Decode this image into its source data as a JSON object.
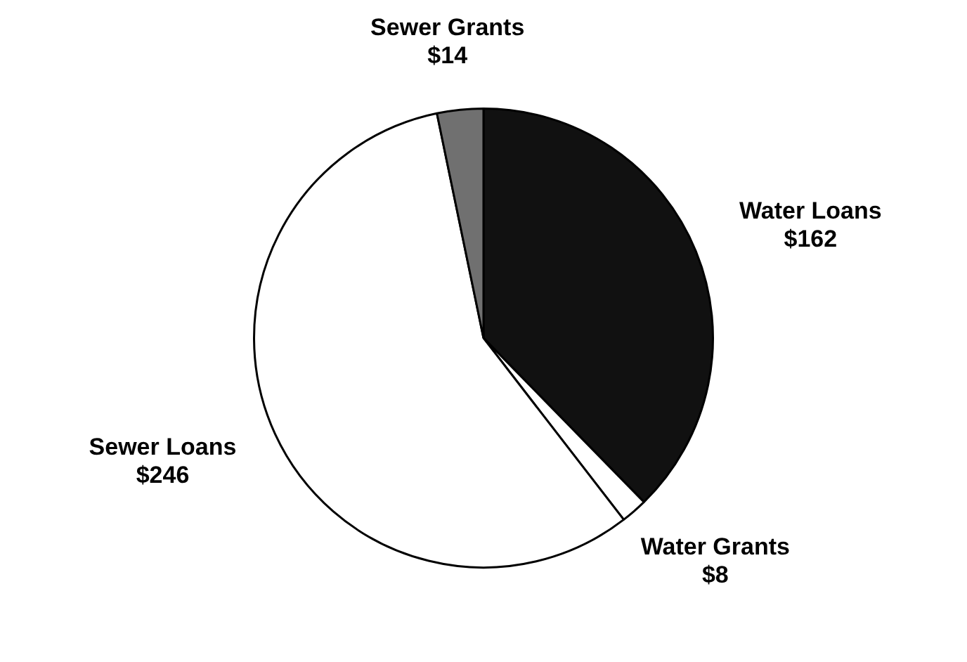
{
  "chart_data": {
    "type": "pie",
    "categories": [
      "Water Loans",
      "Water Grants",
      "Sewer Loans",
      "Sewer Grants"
    ],
    "values": [
      162,
      8,
      246,
      14
    ],
    "value_labels": [
      "$162",
      "$8",
      "$246",
      "$14"
    ],
    "colors": [
      "#111111",
      "#ffffff",
      "#ffffff",
      "#707070"
    ],
    "legend": false
  }
}
